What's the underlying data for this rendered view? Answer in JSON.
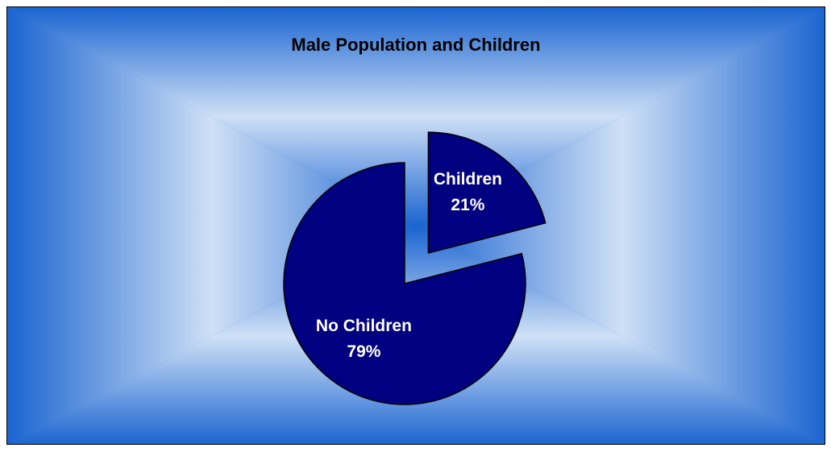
{
  "chart_data": {
    "type": "pie",
    "title": "Male Population and Children",
    "slices": [
      {
        "label": "Children",
        "value": 21,
        "value_label": "21%",
        "exploded": true
      },
      {
        "label": "No Children",
        "value": 79,
        "value_label": "79%",
        "exploded": false
      }
    ],
    "legend": "none",
    "colors": {
      "slice_fill": "#000080",
      "slice_stroke": "#000000",
      "background_center": "#cfe0f6",
      "background_edge": "#1a64d0",
      "label_text": "#ffffff",
      "title_text": "#000000"
    }
  }
}
